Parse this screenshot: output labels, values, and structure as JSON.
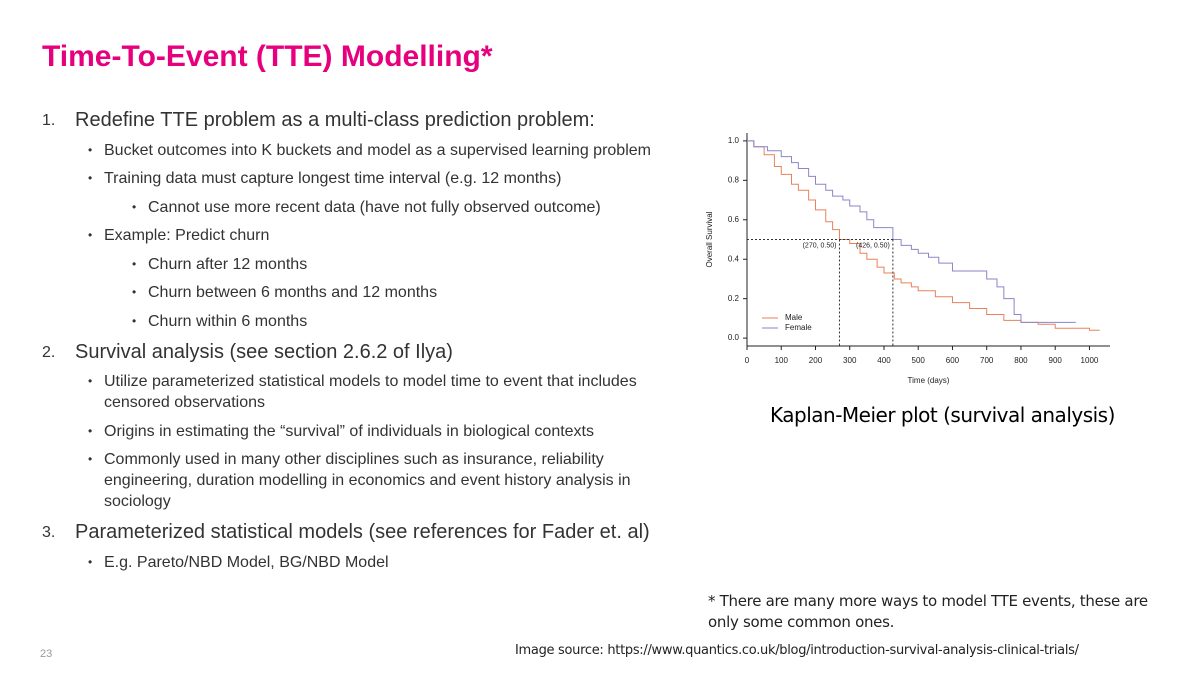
{
  "title": "Time-To-Event (TTE) Modelling*",
  "items": [
    {
      "number": "1.",
      "text": "Redefine TTE problem as a multi-class prediction problem:",
      "bullets": [
        {
          "text": "Bucket outcomes into K buckets and model as a supervised learning problem"
        },
        {
          "text": "Training data must capture longest time interval (e.g. 12 months)",
          "bullets": [
            "Cannot use more recent data (have not fully observed outcome)"
          ]
        },
        {
          "text": "Example: Predict churn",
          "bullets": [
            "Churn after 12 months",
            "Churn between 6 months and 12 months",
            "Churn within 6 months"
          ]
        }
      ]
    },
    {
      "number": "2.",
      "text": "Survival analysis (see section 2.6.2 of Ilya)",
      "bullets": [
        {
          "text": "Utilize parameterized statistical models to model time to event that includes censored observations"
        },
        {
          "text": "Origins in estimating the “survival” of individuals in biological contexts"
        },
        {
          "text": "Commonly used in many other disciplines such as insurance, reliability engineering, duration modelling in economics and event history analysis in sociology"
        }
      ]
    },
    {
      "number": "3.",
      "text": "Parameterized statistical models (see references for Fader et. al)",
      "bullets": [
        {
          "text": "E.g. Pareto/NBD Model, BG/NBD Model"
        }
      ]
    }
  ],
  "chart_data": {
    "type": "step",
    "xlabel": "Time (days)",
    "ylabel": "Overall Survival",
    "xlim": [
      0,
      1060
    ],
    "xticks": [
      0,
      100,
      200,
      300,
      400,
      500,
      600,
      700,
      800,
      900,
      1000
    ],
    "ylim": [
      -0.04,
      1.04
    ],
    "yticks": [
      {
        "value": 0,
        "label": "0.0"
      },
      0.2,
      0.4,
      0.6,
      0.8,
      {
        "value": 1,
        "label": "1.0"
      }
    ],
    "legend": "lower left",
    "series": [
      {
        "name": "Male",
        "color": "#e8825a",
        "x": [
          0,
          20,
          50,
          80,
          100,
          130,
          150,
          180,
          200,
          230,
          250,
          270,
          300,
          330,
          350,
          380,
          400,
          430,
          450,
          480,
          500,
          550,
          600,
          650,
          700,
          750,
          800,
          850,
          900,
          950,
          1000,
          1030
        ],
        "values": [
          1.0,
          0.97,
          0.93,
          0.87,
          0.83,
          0.78,
          0.75,
          0.7,
          0.65,
          0.59,
          0.55,
          0.5,
          0.48,
          0.43,
          0.4,
          0.36,
          0.33,
          0.3,
          0.28,
          0.26,
          0.24,
          0.21,
          0.18,
          0.15,
          0.12,
          0.09,
          0.08,
          0.07,
          0.05,
          0.05,
          0.04,
          0.04
        ]
      },
      {
        "name": "Female",
        "color": "#8a86c8",
        "x": [
          0,
          20,
          60,
          100,
          130,
          150,
          180,
          200,
          230,
          250,
          280,
          300,
          330,
          350,
          370,
          426,
          450,
          480,
          500,
          530,
          560,
          600,
          650,
          700,
          730,
          750,
          780,
          800,
          900,
          960
        ],
        "values": [
          1.0,
          0.97,
          0.95,
          0.92,
          0.89,
          0.86,
          0.82,
          0.78,
          0.75,
          0.72,
          0.7,
          0.67,
          0.64,
          0.6,
          0.56,
          0.5,
          0.47,
          0.45,
          0.43,
          0.41,
          0.38,
          0.34,
          0.34,
          0.3,
          0.26,
          0.2,
          0.12,
          0.08,
          0.08,
          0.08
        ]
      }
    ],
    "annotations": [
      {
        "label": "(270, 0.50)",
        "x": 270,
        "y": 0.5
      },
      {
        "label": "(426, 0.50)",
        "x": 426,
        "y": 0.5
      }
    ]
  },
  "caption": "Kaplan-Meier plot (survival analysis)",
  "footnote": "* There are many more ways to model TTE events, these are only some common ones.",
  "page_number": "23",
  "image_source": "Image source: https://www.quantics.co.uk/blog/introduction-survival-analysis-clinical-trials/"
}
